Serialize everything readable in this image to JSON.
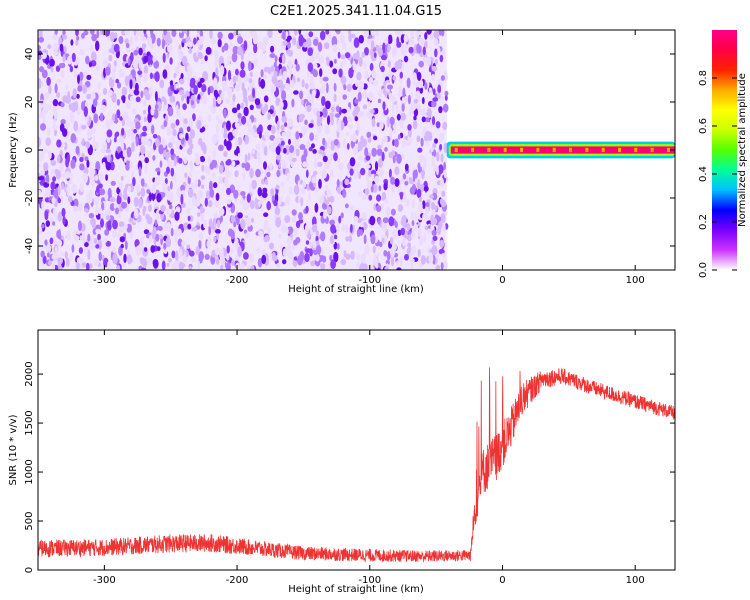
{
  "title": "C2E1.2025.341.11.04.G15",
  "chart_data": [
    {
      "type": "heatmap",
      "description_of_content": "Spectrogram: noisy purple speckle for x < -42 km, narrow high-amplitude band centered at 0 Hz for x >= -42 km",
      "xlabel": "Height of straight line (km)",
      "ylabel": "Frequency (Hz)",
      "xlim": [
        -350,
        130
      ],
      "ylim": [
        -50,
        50
      ],
      "xticks": [
        -300,
        -200,
        -100,
        0,
        100
      ],
      "yticks": [
        -40,
        -20,
        0,
        20,
        40
      ],
      "noise_region_x": [
        -350,
        -42
      ],
      "band": {
        "x_start": -42,
        "x_end": 130,
        "center_hz": 0,
        "core_half_width_hz": 1.5,
        "halo_half_width_hz": 3.5,
        "peak_amplitude": 1.0
      },
      "colorbar": {
        "label": "Normalized spectral amplitude",
        "range": [
          0,
          1
        ],
        "ticks": [
          0.0,
          0.2,
          0.4,
          0.6,
          0.8
        ],
        "colormap": [
          "#ffffff",
          "#cc33ff",
          "#7700ff",
          "#0000ff",
          "#00bfff",
          "#00ff99",
          "#55ff00",
          "#ccff00",
          "#ffff00",
          "#ffaa00",
          "#ff2200",
          "#ff0044",
          "#ff0088"
        ]
      }
    },
    {
      "type": "line",
      "xlabel": "Height of straight line (km)",
      "ylabel": "SNR (10 * v/v)",
      "xlim": [
        -350,
        130
      ],
      "ylim": [
        0,
        2450
      ],
      "xticks": [
        -300,
        -200,
        -100,
        0,
        100
      ],
      "yticks": [
        0,
        500,
        1000,
        1500,
        2000
      ],
      "series": [
        {
          "color": "#ee3333",
          "envelope": [
            {
              "x": -350,
              "mean": 220,
              "noise": 160
            },
            {
              "x": -300,
              "mean": 230,
              "noise": 160
            },
            {
              "x": -250,
              "mean": 270,
              "noise": 170
            },
            {
              "x": -220,
              "mean": 275,
              "noise": 170
            },
            {
              "x": -190,
              "mean": 230,
              "noise": 150
            },
            {
              "x": -150,
              "mean": 170,
              "noise": 130
            },
            {
              "x": -100,
              "mean": 150,
              "noise": 120
            },
            {
              "x": -60,
              "mean": 140,
              "noise": 110
            },
            {
              "x": -24,
              "mean": 150,
              "noise": 110
            },
            {
              "x": -21,
              "mean": 600,
              "noise": 350
            },
            {
              "x": -15,
              "mean": 1000,
              "noise": 450
            },
            {
              "x": -5,
              "mean": 1150,
              "noise": 450
            },
            {
              "x": 5,
              "mean": 1400,
              "noise": 400
            },
            {
              "x": 15,
              "mean": 1750,
              "noise": 300
            },
            {
              "x": 30,
              "mean": 1950,
              "noise": 180
            },
            {
              "x": 45,
              "mean": 1980,
              "noise": 150
            },
            {
              "x": 70,
              "mean": 1850,
              "noise": 140
            },
            {
              "x": 100,
              "mean": 1720,
              "noise": 140
            },
            {
              "x": 130,
              "mean": 1600,
              "noise": 130
            }
          ]
        }
      ]
    }
  ]
}
